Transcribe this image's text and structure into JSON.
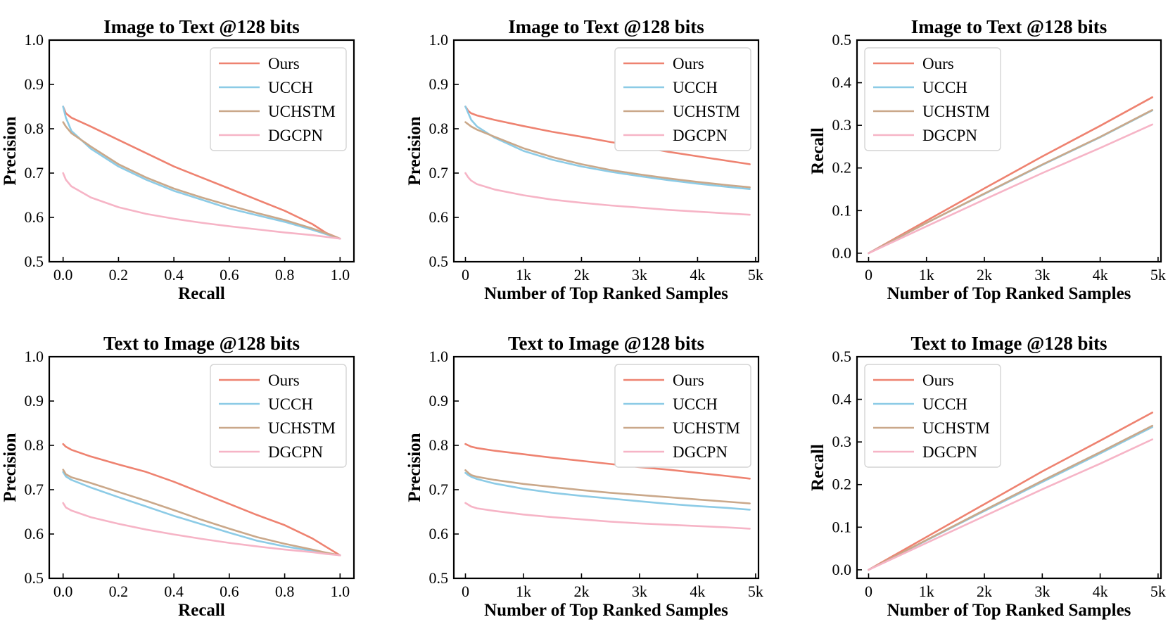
{
  "colors": {
    "Ours": "#ee8270",
    "UCCH": "#8ccbe6",
    "UCHSTM": "#caa88a",
    "DGCPN": "#f6b4c6"
  },
  "chart_data": [
    {
      "type": "line",
      "title": "Image to Text @128 bits",
      "xlabel": "Recall",
      "ylabel": "Precision",
      "xlim": [
        -0.05,
        1.05
      ],
      "ylim": [
        0.5,
        1.0
      ],
      "xticks": [
        0,
        0.2,
        0.4,
        0.6,
        0.8,
        1.0
      ],
      "xtick_labels": [
        "0.0",
        "0.2",
        "0.4",
        "0.6",
        "0.8",
        "1.0"
      ],
      "yticks": [
        0.5,
        0.6,
        0.7,
        0.8,
        0.9,
        1.0
      ],
      "ytick_labels": [
        "0.5",
        "0.6",
        "0.7",
        "0.8",
        "0.9",
        "1.0"
      ],
      "legend_position": "top-right",
      "series": [
        {
          "name": "Ours",
          "x": [
            0,
            0.01,
            0.03,
            0.1,
            0.2,
            0.3,
            0.4,
            0.5,
            0.6,
            0.7,
            0.8,
            0.9,
            0.95,
            1.0
          ],
          "y": [
            0.85,
            0.835,
            0.825,
            0.805,
            0.775,
            0.745,
            0.715,
            0.69,
            0.665,
            0.64,
            0.615,
            0.585,
            0.565,
            0.552
          ]
        },
        {
          "name": "UCCH",
          "x": [
            0,
            0.01,
            0.03,
            0.1,
            0.2,
            0.3,
            0.4,
            0.5,
            0.6,
            0.7,
            0.8,
            0.9,
            0.95,
            1.0
          ],
          "y": [
            0.85,
            0.825,
            0.795,
            0.755,
            0.715,
            0.685,
            0.66,
            0.64,
            0.62,
            0.605,
            0.59,
            0.572,
            0.562,
            0.552
          ]
        },
        {
          "name": "UCHSTM",
          "x": [
            0,
            0.01,
            0.03,
            0.1,
            0.2,
            0.3,
            0.4,
            0.5,
            0.6,
            0.7,
            0.8,
            0.9,
            0.95,
            1.0
          ],
          "y": [
            0.815,
            0.805,
            0.79,
            0.76,
            0.72,
            0.69,
            0.665,
            0.645,
            0.627,
            0.61,
            0.594,
            0.575,
            0.564,
            0.552
          ]
        },
        {
          "name": "DGCPN",
          "x": [
            0,
            0.01,
            0.03,
            0.1,
            0.2,
            0.3,
            0.4,
            0.5,
            0.6,
            0.7,
            0.8,
            0.9,
            0.95,
            1.0
          ],
          "y": [
            0.7,
            0.685,
            0.67,
            0.645,
            0.623,
            0.608,
            0.597,
            0.588,
            0.58,
            0.573,
            0.566,
            0.56,
            0.556,
            0.552
          ]
        }
      ]
    },
    {
      "type": "line",
      "title": "Image to Text @128 bits",
      "xlabel": "Number of Top Ranked Samples",
      "ylabel": "Precision",
      "xlim": [
        -200,
        5050
      ],
      "ylim": [
        0.5,
        1.0
      ],
      "xticks": [
        0,
        1000,
        2000,
        3000,
        4000,
        5000
      ],
      "xtick_labels": [
        "0",
        "1k",
        "2k",
        "3k",
        "4k",
        "5k"
      ],
      "yticks": [
        0.5,
        0.6,
        0.7,
        0.8,
        0.9,
        1.0
      ],
      "ytick_labels": [
        "0.5",
        "0.6",
        "0.7",
        "0.8",
        "0.9",
        "1.0"
      ],
      "legend_position": "top-right",
      "series": [
        {
          "name": "Ours",
          "x": [
            0,
            50,
            100,
            200,
            500,
            1000,
            1500,
            2000,
            2500,
            3000,
            3500,
            4000,
            4500,
            4900
          ],
          "y": [
            0.85,
            0.84,
            0.835,
            0.83,
            0.82,
            0.806,
            0.793,
            0.782,
            0.77,
            0.76,
            0.748,
            0.738,
            0.728,
            0.72
          ]
        },
        {
          "name": "UCCH",
          "x": [
            0,
            50,
            100,
            200,
            500,
            1000,
            1500,
            2000,
            2500,
            3000,
            3500,
            4000,
            4500,
            4900
          ],
          "y": [
            0.85,
            0.835,
            0.82,
            0.805,
            0.78,
            0.75,
            0.73,
            0.715,
            0.703,
            0.693,
            0.684,
            0.676,
            0.669,
            0.664
          ]
        },
        {
          "name": "UCHSTM",
          "x": [
            0,
            50,
            100,
            200,
            500,
            1000,
            1500,
            2000,
            2500,
            3000,
            3500,
            4000,
            4500,
            4900
          ],
          "y": [
            0.815,
            0.81,
            0.805,
            0.798,
            0.782,
            0.756,
            0.736,
            0.72,
            0.707,
            0.697,
            0.688,
            0.68,
            0.673,
            0.668
          ]
        },
        {
          "name": "DGCPN",
          "x": [
            0,
            50,
            100,
            200,
            500,
            1000,
            1500,
            2000,
            2500,
            3000,
            3500,
            4000,
            4500,
            4900
          ],
          "y": [
            0.7,
            0.69,
            0.683,
            0.675,
            0.663,
            0.65,
            0.64,
            0.633,
            0.627,
            0.622,
            0.617,
            0.613,
            0.609,
            0.606
          ]
        }
      ]
    },
    {
      "type": "line",
      "title": "Image to Text @128 bits",
      "xlabel": "Number of Top Ranked Samples",
      "ylabel": "Recall",
      "xlim": [
        -200,
        5050
      ],
      "ylim": [
        -0.02,
        0.5
      ],
      "xticks": [
        0,
        1000,
        2000,
        3000,
        4000,
        5000
      ],
      "xtick_labels": [
        "0",
        "1k",
        "2k",
        "3k",
        "4k",
        "5k"
      ],
      "yticks": [
        0.0,
        0.1,
        0.2,
        0.3,
        0.4,
        0.5
      ],
      "ytick_labels": [
        "0.0",
        "0.1",
        "0.2",
        "0.3",
        "0.4",
        "0.5"
      ],
      "legend_position": "top-left",
      "series": [
        {
          "name": "Ours",
          "x": [
            0,
            1000,
            2000,
            3000,
            4000,
            4900
          ],
          "y": [
            0,
            0.076,
            0.152,
            0.227,
            0.299,
            0.366
          ]
        },
        {
          "name": "UCCH",
          "x": [
            0,
            1000,
            2000,
            3000,
            4000,
            4900
          ],
          "y": [
            0,
            0.071,
            0.139,
            0.207,
            0.272,
            0.335
          ]
        },
        {
          "name": "UCHSTM",
          "x": [
            0,
            1000,
            2000,
            3000,
            4000,
            4900
          ],
          "y": [
            0,
            0.071,
            0.14,
            0.208,
            0.273,
            0.336
          ]
        },
        {
          "name": "DGCPN",
          "x": [
            0,
            1000,
            2000,
            3000,
            4000,
            4900
          ],
          "y": [
            0,
            0.063,
            0.126,
            0.188,
            0.247,
            0.302
          ]
        }
      ]
    },
    {
      "type": "line",
      "title": "Text to Image @128 bits",
      "xlabel": "Recall",
      "ylabel": "Precision",
      "xlim": [
        -0.05,
        1.05
      ],
      "ylim": [
        0.5,
        1.0
      ],
      "xticks": [
        0,
        0.2,
        0.4,
        0.6,
        0.8,
        1.0
      ],
      "xtick_labels": [
        "0.0",
        "0.2",
        "0.4",
        "0.6",
        "0.8",
        "1.0"
      ],
      "yticks": [
        0.5,
        0.6,
        0.7,
        0.8,
        0.9,
        1.0
      ],
      "ytick_labels": [
        "0.5",
        "0.6",
        "0.7",
        "0.8",
        "0.9",
        "1.0"
      ],
      "legend_position": "top-right",
      "series": [
        {
          "name": "Ours",
          "x": [
            0,
            0.01,
            0.03,
            0.1,
            0.2,
            0.3,
            0.4,
            0.5,
            0.6,
            0.7,
            0.8,
            0.9,
            0.95,
            1.0
          ],
          "y": [
            0.803,
            0.797,
            0.79,
            0.775,
            0.757,
            0.74,
            0.718,
            0.693,
            0.668,
            0.643,
            0.62,
            0.59,
            0.571,
            0.552
          ]
        },
        {
          "name": "UCCH",
          "x": [
            0,
            0.01,
            0.03,
            0.1,
            0.2,
            0.3,
            0.4,
            0.5,
            0.6,
            0.7,
            0.8,
            0.9,
            0.95,
            1.0
          ],
          "y": [
            0.74,
            0.73,
            0.722,
            0.705,
            0.683,
            0.662,
            0.641,
            0.622,
            0.603,
            0.585,
            0.572,
            0.562,
            0.557,
            0.552
          ]
        },
        {
          "name": "UCHSTM",
          "x": [
            0,
            0.01,
            0.03,
            0.1,
            0.2,
            0.3,
            0.4,
            0.5,
            0.6,
            0.7,
            0.8,
            0.9,
            0.95,
            1.0
          ],
          "y": [
            0.745,
            0.735,
            0.728,
            0.715,
            0.695,
            0.675,
            0.654,
            0.632,
            0.612,
            0.593,
            0.578,
            0.565,
            0.558,
            0.552
          ]
        },
        {
          "name": "DGCPN",
          "x": [
            0,
            0.01,
            0.03,
            0.1,
            0.2,
            0.3,
            0.4,
            0.5,
            0.6,
            0.7,
            0.8,
            0.9,
            0.95,
            1.0
          ],
          "y": [
            0.67,
            0.66,
            0.653,
            0.638,
            0.623,
            0.61,
            0.599,
            0.589,
            0.58,
            0.572,
            0.565,
            0.559,
            0.555,
            0.552
          ]
        }
      ]
    },
    {
      "type": "line",
      "title": "Text to Image @128 bits",
      "xlabel": "Number of Top Ranked Samples",
      "ylabel": "Precision",
      "xlim": [
        -200,
        5050
      ],
      "ylim": [
        0.5,
        1.0
      ],
      "xticks": [
        0,
        1000,
        2000,
        3000,
        4000,
        5000
      ],
      "xtick_labels": [
        "0",
        "1k",
        "2k",
        "3k",
        "4k",
        "5k"
      ],
      "yticks": [
        0.5,
        0.6,
        0.7,
        0.8,
        0.9,
        1.0
      ],
      "ytick_labels": [
        "0.5",
        "0.6",
        "0.7",
        "0.8",
        "0.9",
        "1.0"
      ],
      "legend_position": "top-right",
      "series": [
        {
          "name": "Ours",
          "x": [
            0,
            50,
            100,
            200,
            500,
            1000,
            1500,
            2000,
            2500,
            3000,
            3500,
            4000,
            4500,
            4900
          ],
          "y": [
            0.803,
            0.8,
            0.797,
            0.794,
            0.788,
            0.78,
            0.772,
            0.765,
            0.758,
            0.751,
            0.745,
            0.738,
            0.731,
            0.725
          ]
        },
        {
          "name": "UCCH",
          "x": [
            0,
            50,
            100,
            200,
            500,
            1000,
            1500,
            2000,
            2500,
            3000,
            3500,
            4000,
            4500,
            4900
          ],
          "y": [
            0.738,
            0.733,
            0.729,
            0.724,
            0.714,
            0.702,
            0.693,
            0.686,
            0.68,
            0.674,
            0.668,
            0.663,
            0.659,
            0.655
          ]
        },
        {
          "name": "UCHSTM",
          "x": [
            0,
            50,
            100,
            200,
            500,
            1000,
            1500,
            2000,
            2500,
            3000,
            3500,
            4000,
            4500,
            4900
          ],
          "y": [
            0.744,
            0.738,
            0.733,
            0.729,
            0.722,
            0.713,
            0.706,
            0.699,
            0.693,
            0.688,
            0.683,
            0.678,
            0.673,
            0.669
          ]
        },
        {
          "name": "DGCPN",
          "x": [
            0,
            50,
            100,
            200,
            500,
            1000,
            1500,
            2000,
            2500,
            3000,
            3500,
            4000,
            4500,
            4900
          ],
          "y": [
            0.67,
            0.666,
            0.662,
            0.658,
            0.652,
            0.644,
            0.638,
            0.633,
            0.628,
            0.624,
            0.621,
            0.618,
            0.615,
            0.612
          ]
        }
      ]
    },
    {
      "type": "line",
      "title": "Text to Image @128 bits",
      "xlabel": "Number of Top Ranked Samples",
      "ylabel": "Recall",
      "xlim": [
        -200,
        5050
      ],
      "ylim": [
        -0.02,
        0.5
      ],
      "xticks": [
        0,
        1000,
        2000,
        3000,
        4000,
        5000
      ],
      "xtick_labels": [
        "0",
        "1k",
        "2k",
        "3k",
        "4k",
        "5k"
      ],
      "yticks": [
        0.0,
        0.1,
        0.2,
        0.3,
        0.4,
        0.5
      ],
      "ytick_labels": [
        "0.0",
        "0.1",
        "0.2",
        "0.3",
        "0.4",
        "0.5"
      ],
      "legend_position": "top-left",
      "series": [
        {
          "name": "Ours",
          "x": [
            0,
            1000,
            2000,
            3000,
            4000,
            4900
          ],
          "y": [
            0,
            0.077,
            0.154,
            0.231,
            0.303,
            0.369
          ]
        },
        {
          "name": "UCCH",
          "x": [
            0,
            1000,
            2000,
            3000,
            4000,
            4900
          ],
          "y": [
            0,
            0.069,
            0.138,
            0.206,
            0.273,
            0.335
          ]
        },
        {
          "name": "UCHSTM",
          "x": [
            0,
            1000,
            2000,
            3000,
            4000,
            4900
          ],
          "y": [
            0,
            0.07,
            0.14,
            0.209,
            0.276,
            0.338
          ]
        },
        {
          "name": "DGCPN",
          "x": [
            0,
            1000,
            2000,
            3000,
            4000,
            4900
          ],
          "y": [
            0,
            0.063,
            0.126,
            0.189,
            0.249,
            0.306
          ]
        }
      ]
    }
  ]
}
